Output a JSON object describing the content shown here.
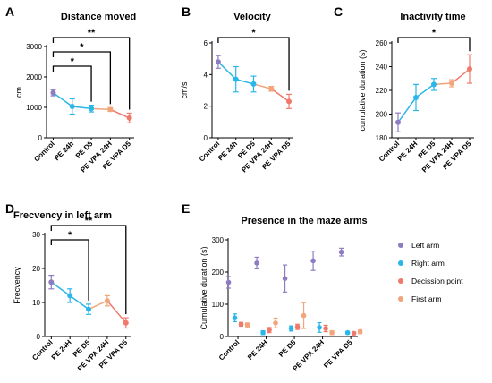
{
  "chart_data": [
    {
      "panel": "A",
      "type": "line",
      "title": "Distance moved",
      "xlabel": "",
      "ylabel": "cm",
      "categories": [
        "Control",
        "PE 24h",
        "PE D5",
        "PE VPA 24H",
        "PE VPA D5"
      ],
      "values": [
        1480,
        1030,
        960,
        930,
        650
      ],
      "errors": [
        100,
        250,
        110,
        60,
        160
      ],
      "ylim": [
        0,
        3000
      ],
      "yticks": [
        0,
        1000,
        2000,
        3000
      ],
      "colors": [
        "#8e7cc3",
        "#29b6e8",
        "#29b6e8",
        "#f2a57b",
        "#ef7a6b"
      ],
      "significance": [
        {
          "from": 0,
          "to": 2,
          "label": "*"
        },
        {
          "from": 0,
          "to": 3,
          "label": "*"
        },
        {
          "from": 0,
          "to": 4,
          "label": "**"
        }
      ]
    },
    {
      "panel": "B",
      "type": "line",
      "title": "Velocity",
      "xlabel": "",
      "ylabel": "cm/s",
      "categories": [
        "Control",
        "PE 24h",
        "PE D5",
        "PE VPA 24H",
        "PE VPA D5"
      ],
      "values": [
        4.8,
        3.7,
        3.4,
        3.1,
        2.3
      ],
      "errors": [
        0.4,
        0.8,
        0.5,
        0.15,
        0.45
      ],
      "ylim": [
        0,
        6
      ],
      "yticks": [
        0,
        2,
        4,
        6
      ],
      "colors": [
        "#8e7cc3",
        "#29b6e8",
        "#29b6e8",
        "#f2a57b",
        "#ef7a6b"
      ],
      "significance": [
        {
          "from": 0,
          "to": 4,
          "label": "*"
        }
      ]
    },
    {
      "panel": "C",
      "type": "line",
      "title": "Inactivity time",
      "xlabel": "",
      "ylabel": "cumulative duration (s)",
      "categories": [
        "Control",
        "PE 24H",
        "PE D5",
        "PE VPA 24H",
        "PE VPA D5"
      ],
      "values": [
        193,
        214,
        225,
        226,
        238
      ],
      "errors": [
        8,
        11,
        5,
        3,
        12
      ],
      "ylim": [
        180,
        260
      ],
      "yticks": [
        180,
        200,
        220,
        240,
        260
      ],
      "colors": [
        "#8e7cc3",
        "#29b6e8",
        "#29b6e8",
        "#f2a57b",
        "#ef7a6b"
      ],
      "significance": [
        {
          "from": 0,
          "to": 4,
          "label": "*"
        }
      ]
    },
    {
      "panel": "D",
      "type": "line",
      "title": "Frecvency in left arm",
      "xlabel": "",
      "ylabel": "Frecvency",
      "categories": [
        "Control",
        "PE 24H",
        "PE D5",
        "PE VPA 24H",
        "PE VPA D5"
      ],
      "values": [
        16,
        12,
        8,
        10.5,
        4
      ],
      "errors": [
        2,
        2,
        1.5,
        1.5,
        1.5
      ],
      "ylim": [
        0,
        30
      ],
      "yticks": [
        0,
        10,
        20,
        30
      ],
      "colors": [
        "#8e7cc3",
        "#29b6e8",
        "#29b6e8",
        "#f2a57b",
        "#ef7a6b"
      ],
      "significance": [
        {
          "from": 0,
          "to": 2,
          "label": "*"
        },
        {
          "from": 0,
          "to": 4,
          "label": "**"
        }
      ]
    },
    {
      "panel": "E",
      "type": "scatter",
      "title": "Presence in the maze arms",
      "xlabel": "",
      "ylabel": "Cumulative duration (s)",
      "categories": [
        "Control",
        "PE 24H",
        "PE D5",
        "PE VPA 24H",
        "PE VPA D5"
      ],
      "ylim": [
        0,
        300
      ],
      "yticks": [
        0,
        100,
        200,
        300
      ],
      "legend_position": "right",
      "series": [
        {
          "name": "Left arm",
          "color": "#8e7cc3",
          "values": [
            168,
            228,
            180,
            235,
            262
          ],
          "errors": [
            18,
            18,
            42,
            30,
            12
          ]
        },
        {
          "name": "Right arm",
          "color": "#29b6e8",
          "values": [
            58,
            12,
            25,
            28,
            12
          ],
          "errors": [
            12,
            6,
            8,
            15,
            4
          ]
        },
        {
          "name": "Decission point",
          "color": "#ef7a6b",
          "values": [
            38,
            20,
            30,
            25,
            10
          ],
          "errors": [
            6,
            8,
            8,
            10,
            4
          ]
        },
        {
          "name": "First arm",
          "color": "#f2a57b",
          "values": [
            36,
            42,
            65,
            12,
            15
          ],
          "errors": [
            6,
            15,
            40,
            6,
            6
          ]
        }
      ]
    }
  ]
}
